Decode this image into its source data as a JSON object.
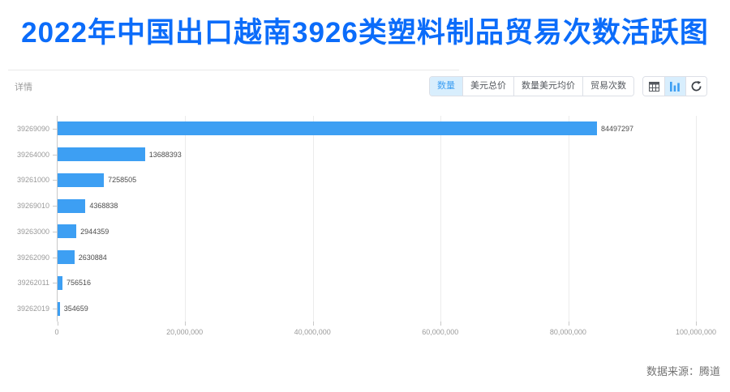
{
  "page": {
    "title": "2022年中国出口越南3926类塑料制品贸易次数活跃图",
    "footer_source": "数据来源：腾道"
  },
  "colors": {
    "title_blue": "#0b6cfa",
    "bar_blue": "#3d9ff3",
    "active_tab_bg": "#d8eefd",
    "active_tab_text": "#3d9ff3"
  },
  "panel": {
    "details_label": "详情",
    "metric_tabs": [
      {
        "label": "数量",
        "active": true
      },
      {
        "label": "美元总价",
        "active": false
      },
      {
        "label": "数量美元均价",
        "active": false
      },
      {
        "label": "贸易次数",
        "active": false
      }
    ],
    "view_tools": [
      {
        "icon": "table-icon",
        "active": false
      },
      {
        "icon": "bar-chart-icon",
        "active": true
      },
      {
        "icon": "refresh-icon",
        "active": false
      }
    ]
  },
  "chart_data": {
    "type": "bar",
    "orientation": "horizontal",
    "title": "2022年中国出口越南3926类塑料制品贸易次数活跃图",
    "series_name": "数量",
    "categories": [
      "39269090",
      "39264000",
      "39261000",
      "39269010",
      "39263000",
      "39262090",
      "39262011",
      "39262019"
    ],
    "values": [
      84497297,
      13688393,
      7258505,
      4368838,
      2944359,
      2630884,
      756516,
      354659
    ],
    "xlim": [
      0,
      100000000
    ],
    "x_tick_labels": [
      "0",
      "20,000,000",
      "40,000,000",
      "60,000,000",
      "80,000,000",
      "100,000,000"
    ],
    "grid": true,
    "value_labels": true,
    "bar_color": "#3d9ff3"
  }
}
